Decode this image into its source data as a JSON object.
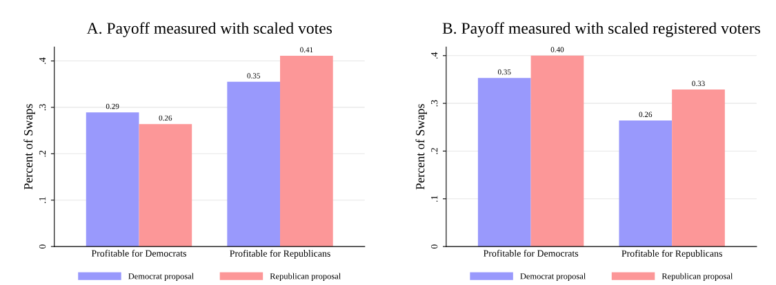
{
  "chart_data": [
    {
      "type": "bar",
      "title": "A. Payoff measured with scaled votes",
      "ylabel": "Percent of Swaps",
      "categories": [
        "Profitable for Democrats",
        "Profitable for Republicans"
      ],
      "series": [
        {
          "name": "Democrat proposal",
          "color": "#9999fc",
          "values": [
            0.289,
            0.355
          ],
          "value_labels": [
            "0.29",
            "0.35"
          ]
        },
        {
          "name": "Republican proposal",
          "color": "#fc9798",
          "values": [
            0.264,
            0.411
          ],
          "value_labels": [
            "0.26",
            "0.41"
          ]
        }
      ],
      "ylim": [
        0,
        0.43
      ],
      "yticks": [
        {
          "value": 0,
          "label": "0"
        },
        {
          "value": 0.1,
          "label": ".1"
        },
        {
          "value": 0.2,
          "label": ".2"
        },
        {
          "value": 0.3,
          "label": ".3"
        },
        {
          "value": 0.4,
          "label": ".4"
        }
      ],
      "grid": "y",
      "legend": "bottom"
    },
    {
      "type": "bar",
      "title": "B. Payoff measured with scaled registered voters",
      "ylabel": "Percent of Swaps",
      "categories": [
        "Profitable for Democrats",
        "Profitable for Republicans"
      ],
      "series": [
        {
          "name": "Democrat proposal",
          "color": "#9999fc",
          "values": [
            0.353,
            0.264
          ],
          "value_labels": [
            "0.35",
            "0.26"
          ]
        },
        {
          "name": "Republican proposal",
          "color": "#fc9798",
          "values": [
            0.4,
            0.329
          ],
          "value_labels": [
            "0.40",
            "0.33"
          ]
        }
      ],
      "ylim": [
        0,
        0.418
      ],
      "yticks": [
        {
          "value": 0,
          "label": "0"
        },
        {
          "value": 0.1,
          "label": ".1"
        },
        {
          "value": 0.2,
          "label": ".2"
        },
        {
          "value": 0.3,
          "label": ".3"
        },
        {
          "value": 0.4,
          "label": ".4"
        }
      ],
      "grid": "y",
      "legend": "bottom"
    }
  ]
}
